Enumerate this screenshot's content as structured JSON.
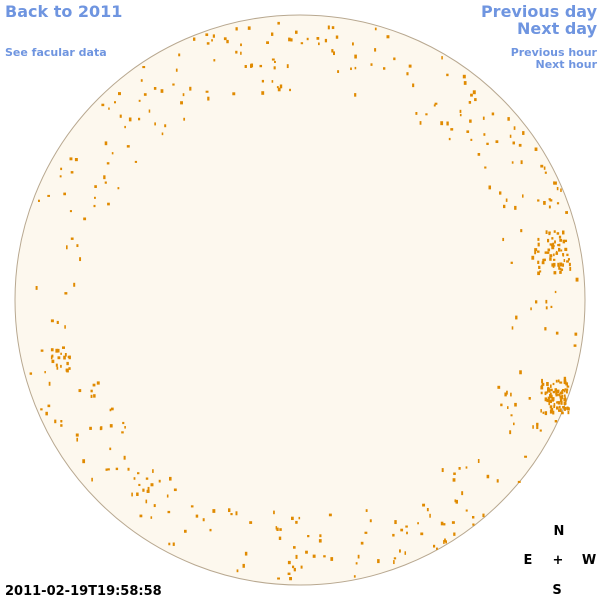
{
  "nav": {
    "back_year": "Back to 2011",
    "facular_data": "See facular data",
    "previous_day": "Previous day",
    "next_day": "Next day",
    "previous_hour": "Previous hour",
    "next_hour": "Next hour"
  },
  "timestamp": "2011-02-19T19:58:58",
  "compass": {
    "north": "N",
    "east": "E",
    "center": "+",
    "west": "W",
    "south": "S"
  }
}
